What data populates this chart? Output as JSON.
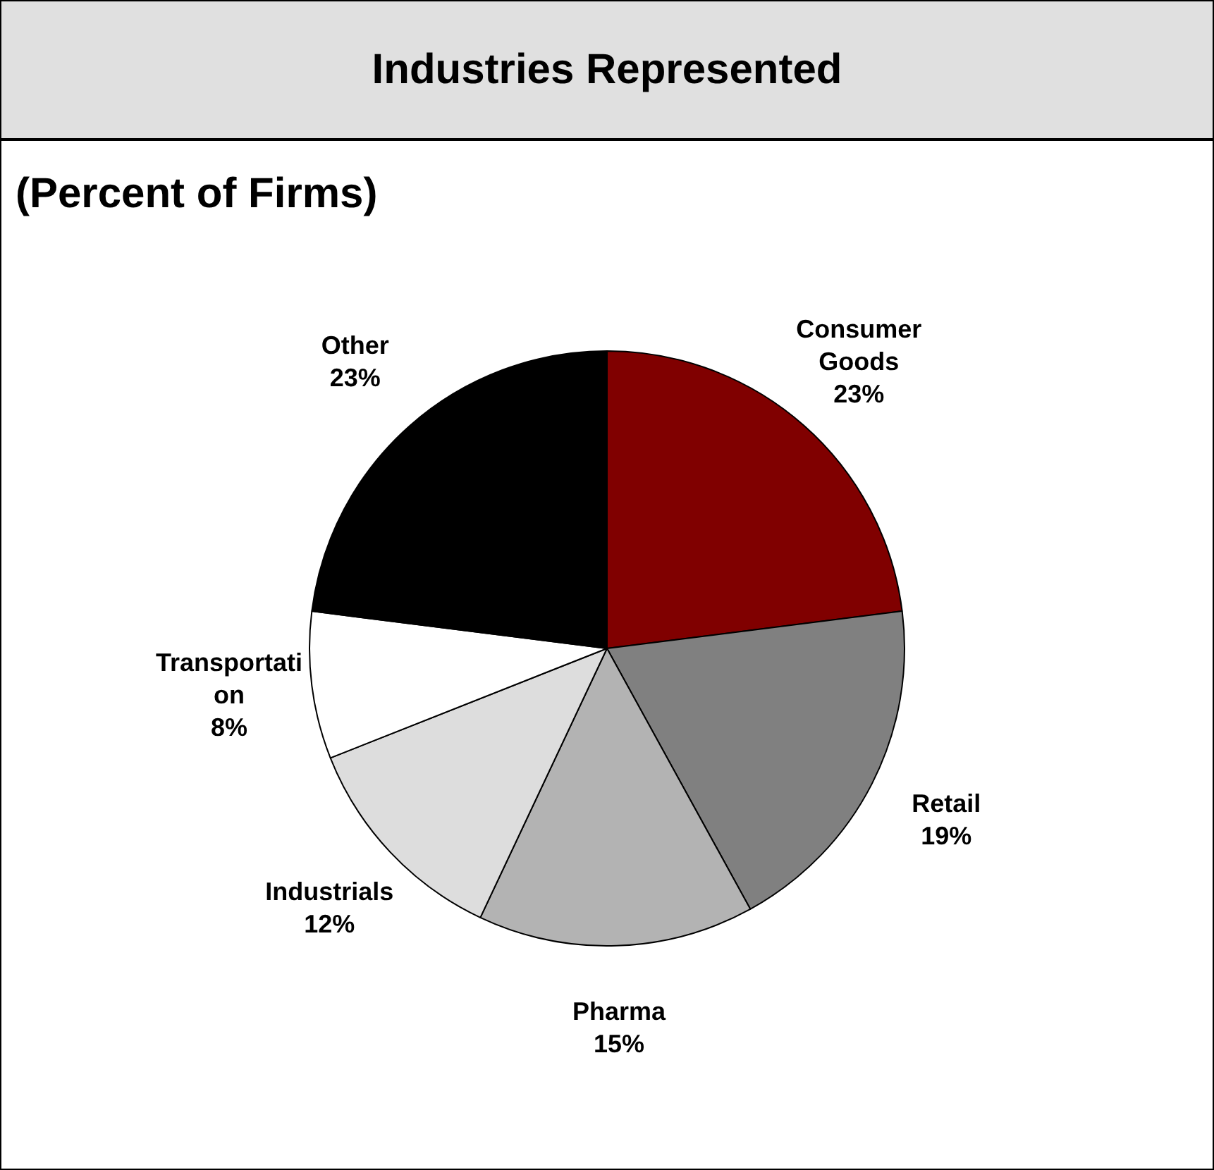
{
  "chart_data": {
    "type": "pie",
    "title": "Industries Represented",
    "subtitle": "(Percent of Firms)",
    "categories": [
      "Consumer Goods",
      "Retail",
      "Pharma",
      "Industrials",
      "Transportation",
      "Other"
    ],
    "values": [
      23,
      19,
      15,
      12,
      8,
      23
    ],
    "value_labels": [
      "23%",
      "19%",
      "15%",
      "12%",
      "8%",
      "23%"
    ],
    "colors": [
      "#800000",
      "#808080",
      "#b3b3b3",
      "#dddddd",
      "#ffffff",
      "#000000"
    ],
    "legend": false
  }
}
